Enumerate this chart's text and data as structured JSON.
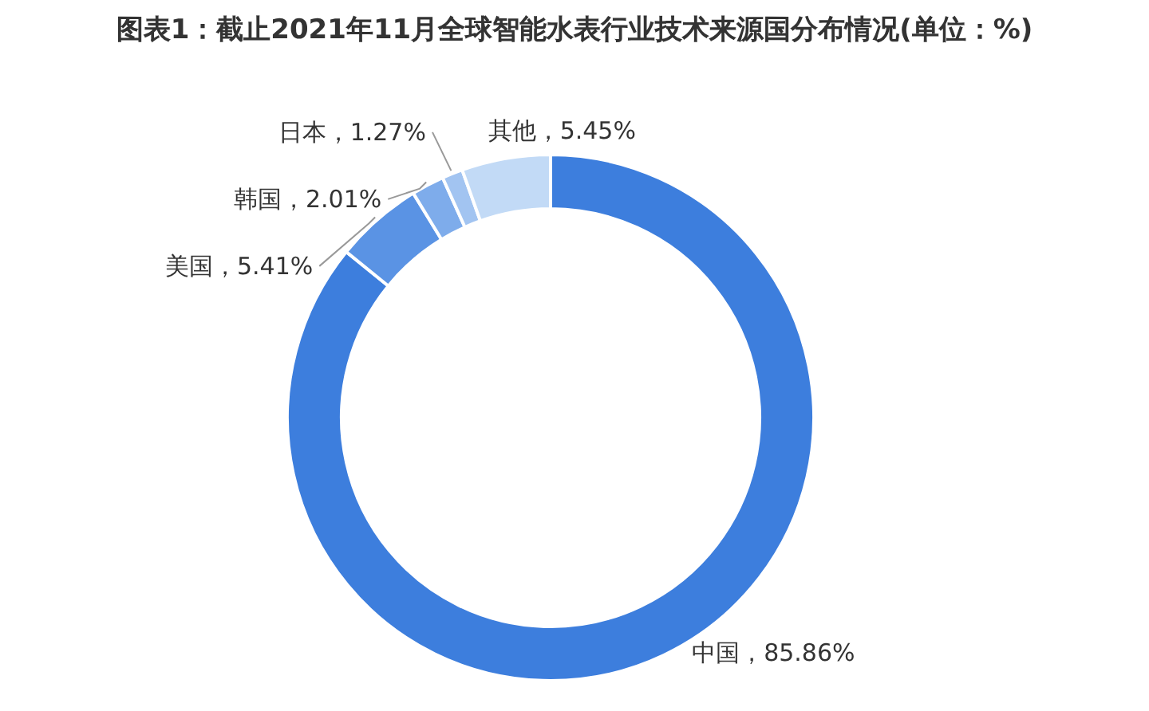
{
  "chart_data": {
    "type": "donut",
    "title": "图表1：截止2021年11月全球智能水表行业技术来源国分布情况(单位：%)",
    "categories": [
      "中国",
      "美国",
      "韩国",
      "日本",
      "其他"
    ],
    "values": [
      85.86,
      5.41,
      2.01,
      1.27,
      5.45
    ],
    "colors": [
      "#3d7edd",
      "#5a93e4",
      "#7eaceb",
      "#a2c4f1",
      "#c2daf6"
    ],
    "value_labels": [
      "85.86%",
      "5.41%",
      "2.01%",
      "1.27%",
      "5.45%"
    ]
  }
}
